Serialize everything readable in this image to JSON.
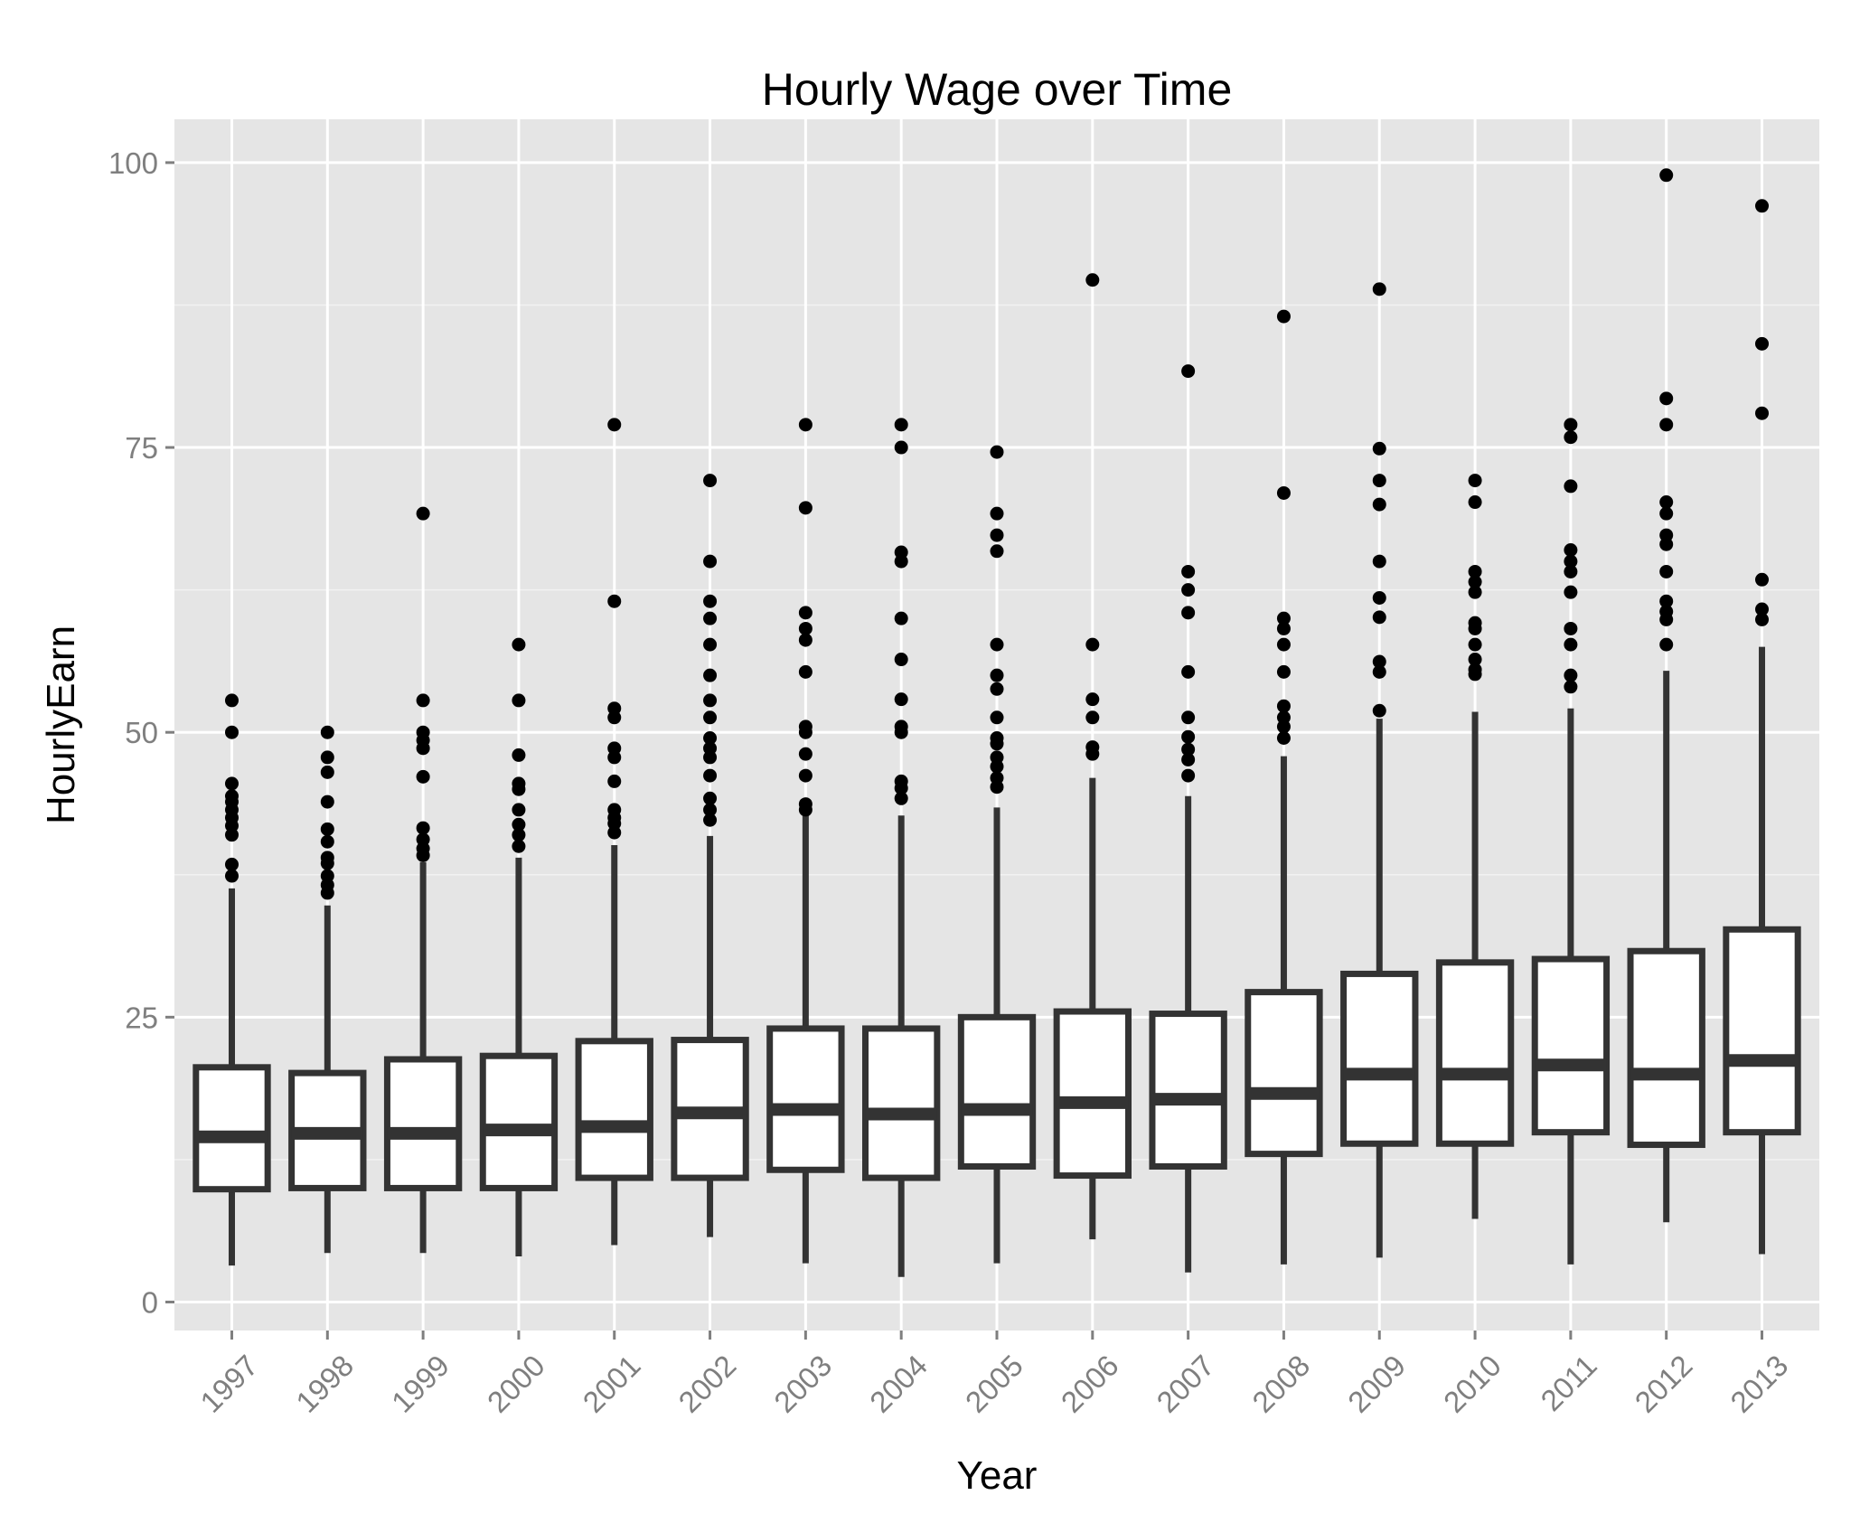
{
  "chart_data": {
    "type": "boxplot",
    "title": "Hourly Wage over Time",
    "xlabel": "Year",
    "ylabel": "HourlyEarn",
    "ylim": [
      -2.5,
      103.8
    ],
    "yticks": [
      0,
      25,
      50,
      75,
      100
    ],
    "grid": true,
    "categories": [
      "1997",
      "1998",
      "1999",
      "2000",
      "2001",
      "2002",
      "2003",
      "2004",
      "2005",
      "2006",
      "2007",
      "2008",
      "2009",
      "2010",
      "2011",
      "2012",
      "2013"
    ],
    "boxes": [
      {
        "whisker_low": 3.2,
        "q1": 9.9,
        "median": 14.5,
        "q3": 20.6,
        "whisker_high": 36.3,
        "outliers": [
          37.4,
          38.4,
          41.0,
          41.8,
          42.5,
          43.2,
          43.9,
          44.4,
          45.5,
          50.0,
          52.8
        ]
      },
      {
        "whisker_low": 4.3,
        "q1": 10.0,
        "median": 14.8,
        "q3": 20.1,
        "whisker_high": 34.8,
        "outliers": [
          35.9,
          36.6,
          37.4,
          38.5,
          39.0,
          40.4,
          41.5,
          43.9,
          46.5,
          47.8,
          50.0
        ]
      },
      {
        "whisker_low": 4.3,
        "q1": 10.0,
        "median": 14.8,
        "q3": 21.3,
        "whisker_high": 38.6,
        "outliers": [
          39.2,
          39.8,
          40.6,
          41.6,
          46.1,
          48.6,
          49.3,
          50.0,
          52.8,
          69.2
        ]
      },
      {
        "whisker_low": 4.0,
        "q1": 10.0,
        "median": 15.1,
        "q3": 21.6,
        "whisker_high": 39.0,
        "outliers": [
          40.0,
          41.0,
          41.9,
          43.2,
          45.0,
          45.5,
          48.0,
          52.8,
          57.7
        ]
      },
      {
        "whisker_low": 5.0,
        "q1": 10.9,
        "median": 15.4,
        "q3": 22.9,
        "whisker_high": 40.1,
        "outliers": [
          41.2,
          42.0,
          42.5,
          43.2,
          45.7,
          47.8,
          48.6,
          51.3,
          52.1,
          61.5,
          77.0
        ]
      },
      {
        "whisker_low": 5.7,
        "q1": 10.9,
        "median": 16.6,
        "q3": 23.0,
        "whisker_high": 40.9,
        "outliers": [
          42.3,
          43.2,
          44.2,
          46.2,
          47.8,
          48.6,
          49.5,
          51.3,
          52.8,
          55.0,
          57.7,
          60.0,
          61.5,
          65.0,
          72.1
        ]
      },
      {
        "whisker_low": 3.4,
        "q1": 11.6,
        "median": 16.9,
        "q3": 24.0,
        "whisker_high": 42.8,
        "outliers": [
          43.2,
          43.7,
          46.2,
          48.1,
          50.0,
          50.5,
          55.3,
          58.1,
          59.1,
          60.5,
          69.7,
          77.0
        ]
      },
      {
        "whisker_low": 2.2,
        "q1": 10.9,
        "median": 16.5,
        "q3": 24.0,
        "whisker_high": 42.7,
        "outliers": [
          44.2,
          45.1,
          45.7,
          50.0,
          50.5,
          52.9,
          56.4,
          60.0,
          65.0,
          65.8,
          75.0,
          77.0
        ]
      },
      {
        "whisker_low": 3.4,
        "q1": 11.9,
        "median": 16.9,
        "q3": 25.0,
        "whisker_high": 43.4,
        "outliers": [
          45.2,
          46.0,
          47.0,
          47.8,
          49.0,
          49.5,
          51.3,
          53.8,
          55.0,
          57.7,
          65.9,
          67.3,
          69.2,
          74.6
        ]
      },
      {
        "whisker_low": 5.5,
        "q1": 11.1,
        "median": 17.5,
        "q3": 25.5,
        "whisker_high": 46.0,
        "outliers": [
          48.1,
          48.7,
          51.3,
          52.9,
          57.7,
          89.7
        ]
      },
      {
        "whisker_low": 2.6,
        "q1": 11.9,
        "median": 17.8,
        "q3": 25.3,
        "whisker_high": 44.4,
        "outliers": [
          46.2,
          47.6,
          48.5,
          49.6,
          51.3,
          55.3,
          60.5,
          62.5,
          64.1,
          81.7
        ]
      },
      {
        "whisker_low": 3.3,
        "q1": 13.0,
        "median": 18.3,
        "q3": 27.2,
        "whisker_high": 47.9,
        "outliers": [
          49.5,
          50.5,
          51.3,
          52.3,
          55.3,
          57.7,
          59.1,
          60.0,
          71.0,
          86.5
        ]
      },
      {
        "whisker_low": 3.9,
        "q1": 13.9,
        "median": 20.0,
        "q3": 28.8,
        "whisker_high": 51.2,
        "outliers": [
          51.9,
          55.3,
          56.2,
          60.1,
          61.8,
          65.0,
          70.0,
          72.1,
          74.9,
          88.9
        ]
      },
      {
        "whisker_low": 7.3,
        "q1": 13.9,
        "median": 20.0,
        "q3": 29.8,
        "whisker_high": 51.8,
        "outliers": [
          55.1,
          55.5,
          56.4,
          57.7,
          59.1,
          59.6,
          62.3,
          63.2,
          64.1,
          70.2,
          72.1
        ]
      },
      {
        "whisker_low": 3.3,
        "q1": 14.9,
        "median": 20.8,
        "q3": 30.1,
        "whisker_high": 52.1,
        "outliers": [
          54.0,
          55.0,
          57.7,
          59.1,
          62.3,
          64.1,
          65.0,
          66.0,
          71.6,
          75.9,
          77.0
        ]
      },
      {
        "whisker_low": 7.0,
        "q1": 13.8,
        "median": 20.0,
        "q3": 30.8,
        "whisker_high": 55.4,
        "outliers": [
          57.7,
          59.9,
          60.6,
          61.5,
          64.1,
          66.5,
          67.3,
          69.2,
          70.2,
          77.0,
          79.3,
          98.9
        ]
      },
      {
        "whisker_low": 4.2,
        "q1": 14.9,
        "median": 21.2,
        "q3": 32.7,
        "whisker_high": 57.5,
        "outliers": [
          59.9,
          60.8,
          63.4,
          78.0,
          84.1,
          96.2
        ]
      }
    ],
    "colors": {
      "panel": "#e5e5e5",
      "grid_major": "#ffffff",
      "grid_minor": "#f2f2f2",
      "box_line": "#333333",
      "box_fill": "#ffffff",
      "outlier": "#000000",
      "tick_text": "#7f7f7f"
    }
  }
}
